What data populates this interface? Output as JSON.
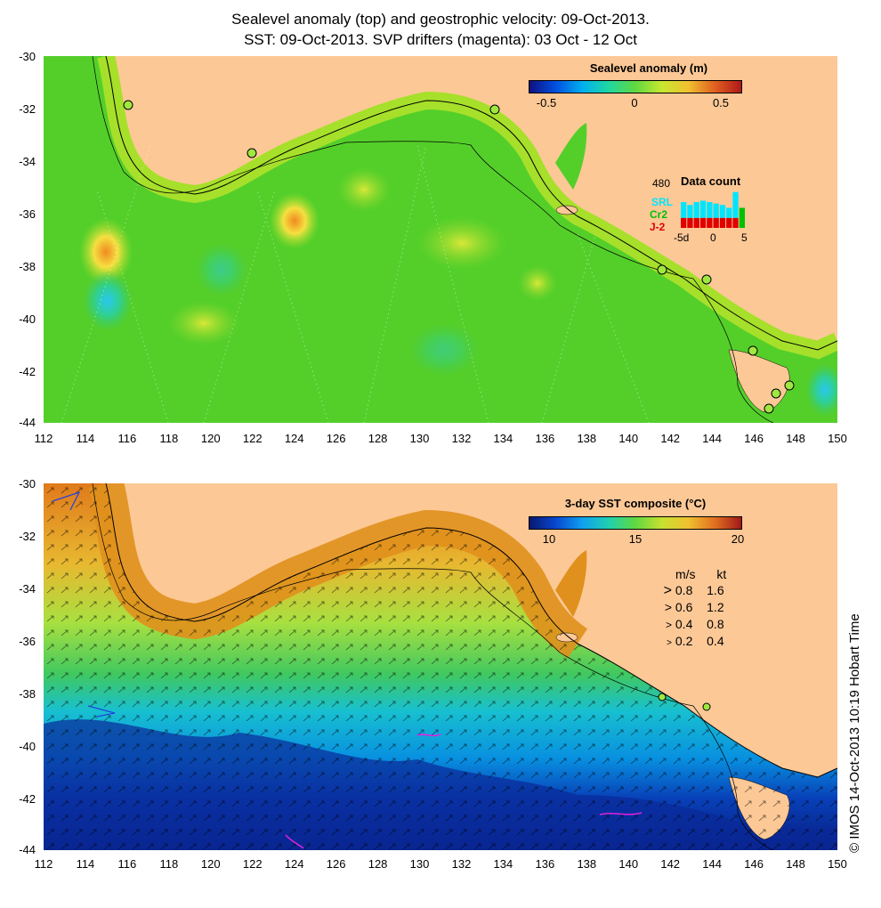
{
  "title": {
    "line1": "Sealevel anomaly (top) and geostrophic velocity: 09-Oct-2013.",
    "line2": "SST: 09-Oct-2013. SVP drifters (magenta): 03 Oct - 12 Oct"
  },
  "axes": {
    "y_ticks": [
      "-30",
      "-32",
      "-34",
      "-36",
      "-38",
      "-40",
      "-42",
      "-44"
    ],
    "x_ticks": [
      "112",
      "114",
      "116",
      "118",
      "120",
      "122",
      "124",
      "126",
      "128",
      "130",
      "132",
      "134",
      "136",
      "138",
      "140",
      "142",
      "144",
      "146",
      "148",
      "150"
    ]
  },
  "top_panel": {
    "colorbar": {
      "title": "Sealevel anomaly (m)",
      "labels": [
        "-0.5",
        "0",
        "0.5"
      ]
    },
    "data_count": {
      "max": "480",
      "title": "Data count",
      "satellites": [
        {
          "name": "SRL",
          "color": "#00e5ff"
        },
        {
          "name": "Cr2",
          "color": "#00c000"
        },
        {
          "name": "J-2",
          "color": "#e00000"
        }
      ],
      "x_labels": [
        "-5d",
        "0",
        "5"
      ],
      "bars": [
        {
          "jason": 0.35,
          "cryo": 0.0,
          "saral": 0.55
        },
        {
          "jason": 0.35,
          "cryo": 0.0,
          "saral": 0.45
        },
        {
          "jason": 0.35,
          "cryo": 0.0,
          "saral": 0.55
        },
        {
          "jason": 0.35,
          "cryo": 0.0,
          "saral": 0.6
        },
        {
          "jason": 0.35,
          "cryo": 0.0,
          "saral": 0.55
        },
        {
          "jason": 0.35,
          "cryo": 0.0,
          "saral": 0.5
        },
        {
          "jason": 0.35,
          "cryo": 0.0,
          "saral": 0.45
        },
        {
          "jason": 0.35,
          "cryo": 0.0,
          "saral": 0.35
        },
        {
          "jason": 0.35,
          "cryo": 0.0,
          "saral": 0.9
        },
        {
          "jason": 0.0,
          "cryo": 0.7,
          "saral": 0.0
        }
      ]
    }
  },
  "bottom_panel": {
    "colorbar": {
      "title": "3-day SST composite (°C)",
      "labels": [
        "10",
        "15",
        "20"
      ]
    },
    "velocity_legend": {
      "header_ms": "m/s",
      "header_kt": "kt",
      "rows": [
        {
          "ms": "0.8",
          "kt": "1.6"
        },
        {
          "ms": "0.6",
          "kt": "1.2"
        },
        {
          "ms": "0.4",
          "kt": "0.8"
        },
        {
          "ms": "0.2",
          "kt": "0.4"
        }
      ]
    }
  },
  "credit": "© IMOS 14-Oct-2013 10:19 Hobart Time",
  "colors": {
    "land": "#fcc896",
    "sla_ocean": "#54cf2a",
    "sst_warm": "#e08a20",
    "sst_mid": "#b8e43c",
    "sst_cool": "#00c0e8",
    "sst_cold": "#1030b0",
    "drifter": "#e020e0"
  }
}
